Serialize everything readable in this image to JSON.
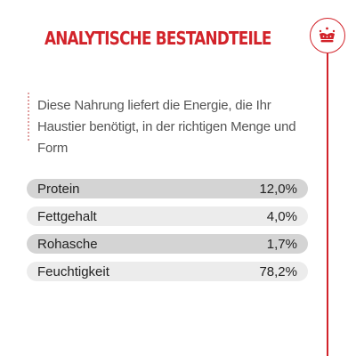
{
  "header": {
    "title": "ANALYTISCHE BESTANDTEILE",
    "logo_icon": "royal-crown-icon",
    "accent_color": "#d2232a"
  },
  "intro": {
    "text": "Diese Nahrung liefert die Energie, die Ihr Haustier benötigt, in der richtigen Menge und Form"
  },
  "nutrients": [
    {
      "label": "Protein",
      "value": "12,0%"
    },
    {
      "label": "Fettgehalt",
      "value": "4,0%"
    },
    {
      "label": "Rohasche",
      "value": "1,7%"
    },
    {
      "label": "Feuchtigkeit",
      "value": "78,2%"
    }
  ]
}
